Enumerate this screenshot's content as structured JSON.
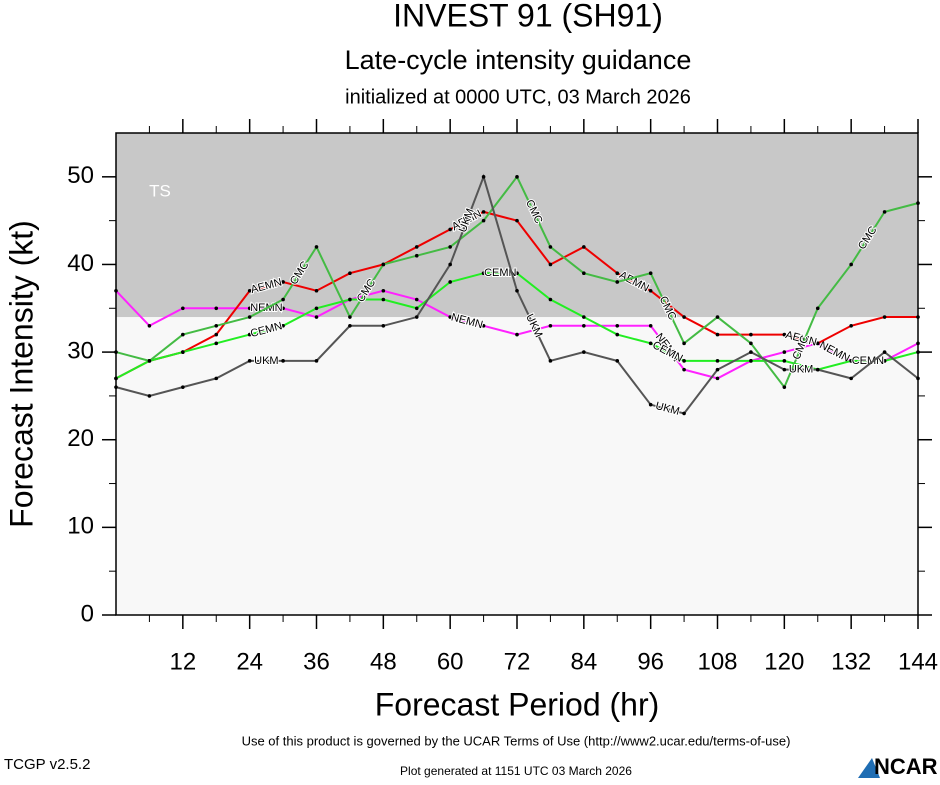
{
  "chart_data": {
    "type": "line",
    "title": "INVEST 91 (SH91)",
    "subtitle": "Late-cycle intensity guidance",
    "init_line": "initialized at 0000 UTC, 03 March 2026",
    "x_label": "Forecast Period (hr)",
    "y_label": "Forecast Intensity (kt)",
    "x": [
      0,
      6,
      12,
      18,
      24,
      30,
      36,
      42,
      48,
      54,
      60,
      66,
      72,
      78,
      84,
      90,
      96,
      102,
      108,
      114,
      120,
      126,
      132,
      138,
      144
    ],
    "xlim": [
      0,
      144
    ],
    "xticks": [
      12,
      24,
      36,
      48,
      60,
      72,
      84,
      96,
      108,
      120,
      132,
      144
    ],
    "ylim": [
      0,
      55
    ],
    "yticks": [
      0,
      10,
      20,
      30,
      40,
      50
    ],
    "bands": [
      {
        "label": "TS",
        "from": 34,
        "to": 55,
        "color": "#c8c8c8"
      }
    ],
    "series": [
      {
        "name": "NEMN",
        "color": "#ff22ff",
        "values": [
          37,
          33,
          35,
          35,
          35,
          35,
          34,
          36,
          37,
          36,
          34,
          33,
          32,
          33,
          33,
          33,
          33,
          28,
          27,
          29,
          30,
          31,
          29,
          29,
          31
        ]
      },
      {
        "name": "AEMN",
        "color": "#ee0000",
        "values": [
          27,
          29,
          30,
          32,
          37,
          38,
          37,
          39,
          40,
          42,
          44,
          46,
          45,
          40,
          42,
          39,
          37,
          34,
          32,
          32,
          32,
          31,
          33,
          34,
          34
        ]
      },
      {
        "name": "CEMN",
        "color": "#22ee22",
        "values": [
          27,
          29,
          30,
          31,
          32,
          33,
          35,
          36,
          36,
          35,
          38,
          39,
          39,
          36,
          34,
          32,
          31,
          29,
          29,
          29,
          29,
          28,
          29,
          29,
          30
        ]
      },
      {
        "name": "CMC",
        "color": "#44bb44",
        "values": [
          30,
          29,
          32,
          33,
          34,
          36,
          42,
          34,
          40,
          41,
          42,
          45,
          50,
          42,
          39,
          38,
          39,
          31,
          34,
          31,
          26,
          35,
          40,
          46,
          47
        ]
      },
      {
        "name": "UKM",
        "color": "#555555",
        "values": [
          26,
          25,
          26,
          27,
          29,
          29,
          29,
          33,
          33,
          34,
          40,
          50,
          37,
          29,
          30,
          29,
          24,
          23,
          28,
          30,
          28,
          28,
          27,
          30,
          27
        ]
      }
    ],
    "terms": "Use of this product is governed by the UCAR Terms of Use (http://www2.ucar.edu/terms-of-use)",
    "version": "TCGP v2.5.2",
    "generated": "Plot generated at 1151 UTC   03 March 2026",
    "logo": "NCAR"
  }
}
